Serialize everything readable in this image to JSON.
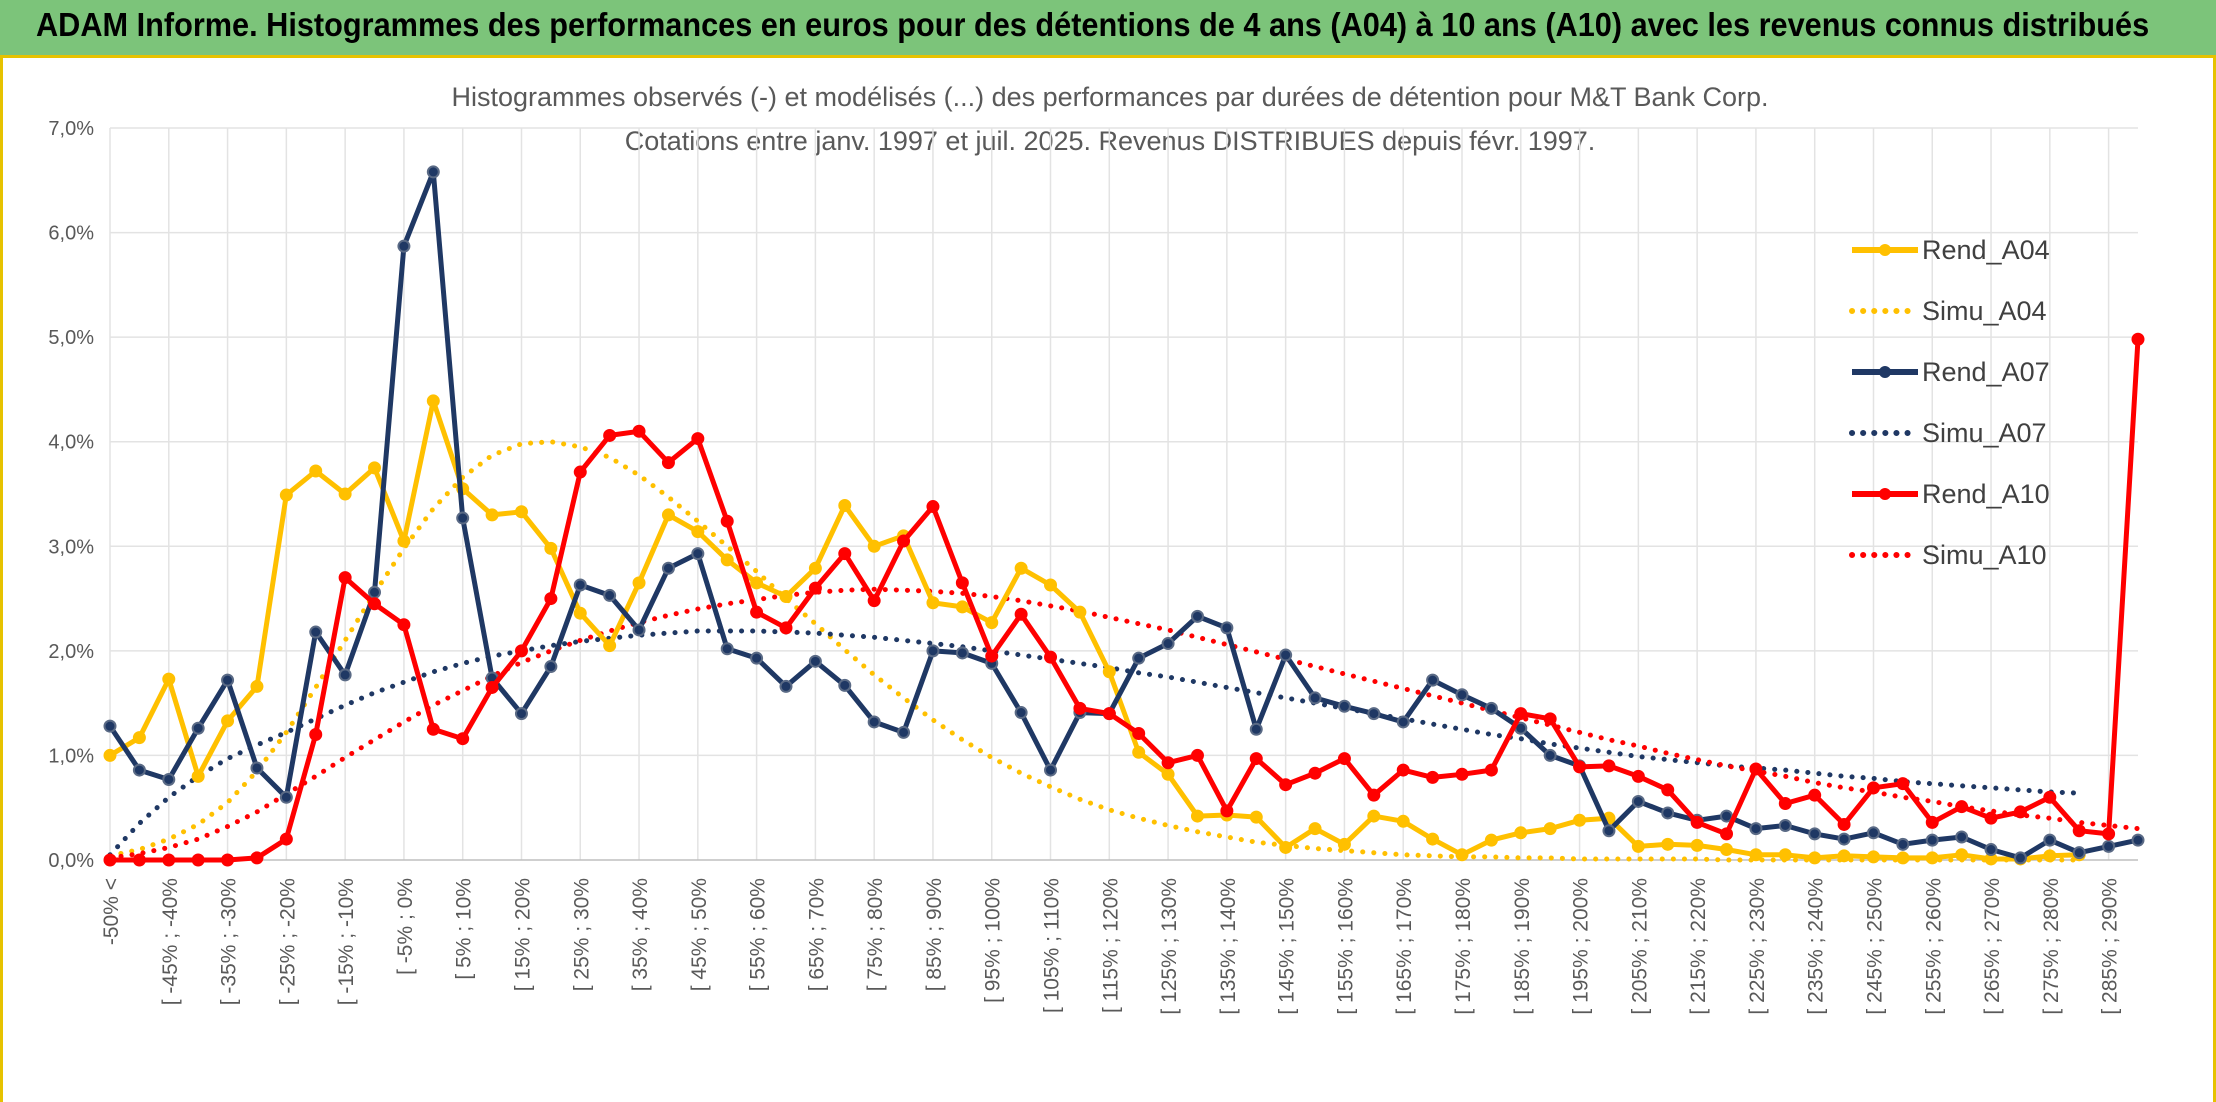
{
  "header": {
    "title": "ADAM Informe. Histogrammes des performances en euros pour des détentions de 4 ans (A04) à 10 ans (A10) avec les revenus connus distribués"
  },
  "chart_data": {
    "type": "line",
    "title": "Histogrammes observés (-) et modélisés (...) des performances par durées de détention pour M&T Bank Corp.",
    "subtitle": "Cotations entre janv. 1997 et juil. 2025. Revenus DISTRIBUES depuis févr. 1997.",
    "xlabel": "",
    "ylabel": "",
    "ylim": [
      0,
      7
    ],
    "y_ticks": [
      "0,0%",
      "1,0%",
      "2,0%",
      "3,0%",
      "4,0%",
      "5,0%",
      "6,0%",
      "7,0%"
    ],
    "grid": true,
    "legend_position": "right",
    "x_labels": [
      "-50% <",
      "[ -45% ; -40%",
      "[ -35% ; -30%",
      "[ -25% ; -20%",
      "[ -15% ; -10%",
      "[ -5% ; 0%",
      "[ 5% ; 10%",
      "[ 15% ; 20%",
      "[ 25% ; 30%",
      "[ 35% ; 40%",
      "[ 45% ; 50%",
      "[ 55% ; 60%",
      "[ 65% ; 70%",
      "[ 75% ; 80%",
      "[ 85% ; 90%",
      "[ 95% ; 100%",
      "[ 105% ; 110%",
      "[ 115% ; 120%",
      "[ 125% ; 130%",
      "[ 135% ; 140%",
      "[ 145% ; 150%",
      "[ 155% ; 160%",
      "[ 165% ; 170%",
      "[ 175% ; 180%",
      "[ 185% ; 190%",
      "[ 195% ; 200%",
      "[ 205% ; 210%",
      "[ 215% ; 220%",
      "[ 225% ; 230%",
      "[ 235% ; 240%",
      "[ 245% ; 250%",
      "[ 255% ; 260%",
      "[ 265% ; 270%",
      "[ 275% ; 280%",
      "[ 285% ; 290%"
    ],
    "series": [
      {
        "name": "Rend_A04",
        "color": "#ffc000",
        "style": "solid",
        "markers": true,
        "values": [
          1.0,
          1.17,
          1.73,
          0.8,
          1.33,
          1.66,
          3.49,
          3.72,
          3.5,
          3.75,
          3.05,
          4.39,
          3.55,
          3.3,
          3.33,
          2.98,
          2.36,
          2.05,
          2.65,
          3.3,
          3.14,
          2.87,
          2.65,
          2.52,
          2.79,
          3.39,
          3.0,
          3.1,
          2.46,
          2.42,
          2.27,
          2.79,
          2.63,
          2.37,
          1.8,
          1.03,
          0.82,
          0.42,
          0.43,
          0.41,
          0.12,
          0.3,
          0.15,
          0.42,
          0.37,
          0.2,
          0.05,
          0.19,
          0.26,
          0.3,
          0.38,
          0.4,
          0.13,
          0.15,
          0.14,
          0.1,
          0.05,
          0.05,
          0.02,
          0.04,
          0.03,
          0.02,
          0.02,
          0.05,
          0.01,
          0.01,
          0.04,
          0.05
        ]
      },
      {
        "name": "Simu_A04",
        "color": "#ffc000",
        "style": "dotted",
        "markers": false,
        "values": [
          0.04,
          0.1,
          0.2,
          0.34,
          0.55,
          0.85,
          1.22,
          1.65,
          2.1,
          2.55,
          2.98,
          3.36,
          3.66,
          3.87,
          3.98,
          4.0,
          3.95,
          3.85,
          3.68,
          3.47,
          3.24,
          3.0,
          2.76,
          2.5,
          2.26,
          2.01,
          1.77,
          1.55,
          1.34,
          1.15,
          0.98,
          0.83,
          0.7,
          0.58,
          0.48,
          0.4,
          0.33,
          0.27,
          0.22,
          0.17,
          0.14,
          0.11,
          0.09,
          0.07,
          0.05,
          0.04,
          0.03,
          0.03,
          0.02,
          0.02,
          0.01,
          0.01,
          0.01,
          0.01,
          0.01,
          0.0,
          0.0,
          0.0,
          0.0,
          0.0,
          0.0,
          0.0,
          0.0,
          0.0,
          0.0,
          0.0,
          0.0,
          0.0
        ]
      },
      {
        "name": "Rend_A07",
        "color": "#1f3864",
        "style": "solid",
        "markers": true,
        "values": [
          1.28,
          0.86,
          0.77,
          1.26,
          1.72,
          0.88,
          0.6,
          2.18,
          1.77,
          2.56,
          5.87,
          6.58,
          3.27,
          1.74,
          1.4,
          1.85,
          2.63,
          2.53,
          2.2,
          2.79,
          2.93,
          2.02,
          1.93,
          1.66,
          1.9,
          1.67,
          1.32,
          1.22,
          2.0,
          1.98,
          1.88,
          1.41,
          0.86,
          1.41,
          1.4,
          1.93,
          2.07,
          2.33,
          2.22,
          1.25,
          1.96,
          1.55,
          1.47,
          1.4,
          1.32,
          1.72,
          1.58,
          1.45,
          1.26,
          1.0,
          0.9,
          0.28,
          0.56,
          0.45,
          0.38,
          0.42,
          0.3,
          0.33,
          0.25,
          0.2,
          0.26,
          0.15,
          0.19,
          0.22,
          0.1,
          0.02,
          0.19,
          0.07,
          0.13,
          0.19
        ]
      },
      {
        "name": "Simu_A07",
        "color": "#1f3864",
        "style": "dotted",
        "markers": false,
        "values": [
          0.05,
          0.35,
          0.6,
          0.8,
          0.97,
          1.1,
          1.22,
          1.35,
          1.48,
          1.6,
          1.7,
          1.8,
          1.88,
          1.95,
          2.0,
          2.05,
          2.09,
          2.12,
          2.15,
          2.17,
          2.19,
          2.19,
          2.19,
          2.18,
          2.17,
          2.15,
          2.13,
          2.1,
          2.07,
          2.04,
          2.0,
          1.96,
          1.92,
          1.88,
          1.84,
          1.79,
          1.75,
          1.7,
          1.65,
          1.6,
          1.55,
          1.5,
          1.45,
          1.4,
          1.35,
          1.3,
          1.25,
          1.2,
          1.16,
          1.11,
          1.07,
          1.03,
          0.99,
          0.96,
          0.93,
          0.9,
          0.88,
          0.86,
          0.83,
          0.8,
          0.78,
          0.75,
          0.73,
          0.71,
          0.69,
          0.67,
          0.65,
          0.64
        ]
      },
      {
        "name": "Rend_A10",
        "color": "#ff0000",
        "style": "solid",
        "markers": true,
        "values": [
          0.0,
          0.0,
          0.0,
          0.0,
          0.0,
          0.02,
          0.2,
          1.2,
          2.7,
          2.45,
          2.25,
          1.25,
          1.16,
          1.65,
          2.0,
          2.5,
          3.71,
          4.06,
          4.1,
          3.8,
          4.03,
          3.24,
          2.37,
          2.22,
          2.6,
          2.93,
          2.48,
          3.05,
          3.38,
          2.65,
          1.95,
          2.35,
          1.94,
          1.45,
          1.4,
          1.21,
          0.93,
          1.0,
          0.47,
          0.97,
          0.72,
          0.83,
          0.97,
          0.62,
          0.86,
          0.79,
          0.82,
          0.86,
          1.4,
          1.35,
          0.89,
          0.9,
          0.8,
          0.67,
          0.36,
          0.25,
          0.87,
          0.54,
          0.62,
          0.34,
          0.69,
          0.73,
          0.36,
          0.51,
          0.4,
          0.46,
          0.6,
          0.28,
          0.25,
          4.98
        ]
      },
      {
        "name": "Simu_A10",
        "color": "#ff0000",
        "style": "dotted",
        "markers": false,
        "values": [
          0.02,
          0.06,
          0.12,
          0.2,
          0.32,
          0.46,
          0.63,
          0.8,
          0.98,
          1.15,
          1.32,
          1.48,
          1.62,
          1.76,
          1.89,
          2.0,
          2.1,
          2.19,
          2.27,
          2.34,
          2.4,
          2.45,
          2.49,
          2.53,
          2.56,
          2.58,
          2.59,
          2.58,
          2.57,
          2.55,
          2.52,
          2.48,
          2.43,
          2.38,
          2.32,
          2.26,
          2.2,
          2.13,
          2.06,
          1.99,
          1.92,
          1.85,
          1.78,
          1.71,
          1.64,
          1.57,
          1.5,
          1.43,
          1.36,
          1.29,
          1.22,
          1.15,
          1.09,
          1.02,
          0.96,
          0.9,
          0.85,
          0.8,
          0.74,
          0.69,
          0.65,
          0.6,
          0.56,
          0.51,
          0.47,
          0.43,
          0.4,
          0.36,
          0.33,
          0.3
        ]
      }
    ]
  }
}
